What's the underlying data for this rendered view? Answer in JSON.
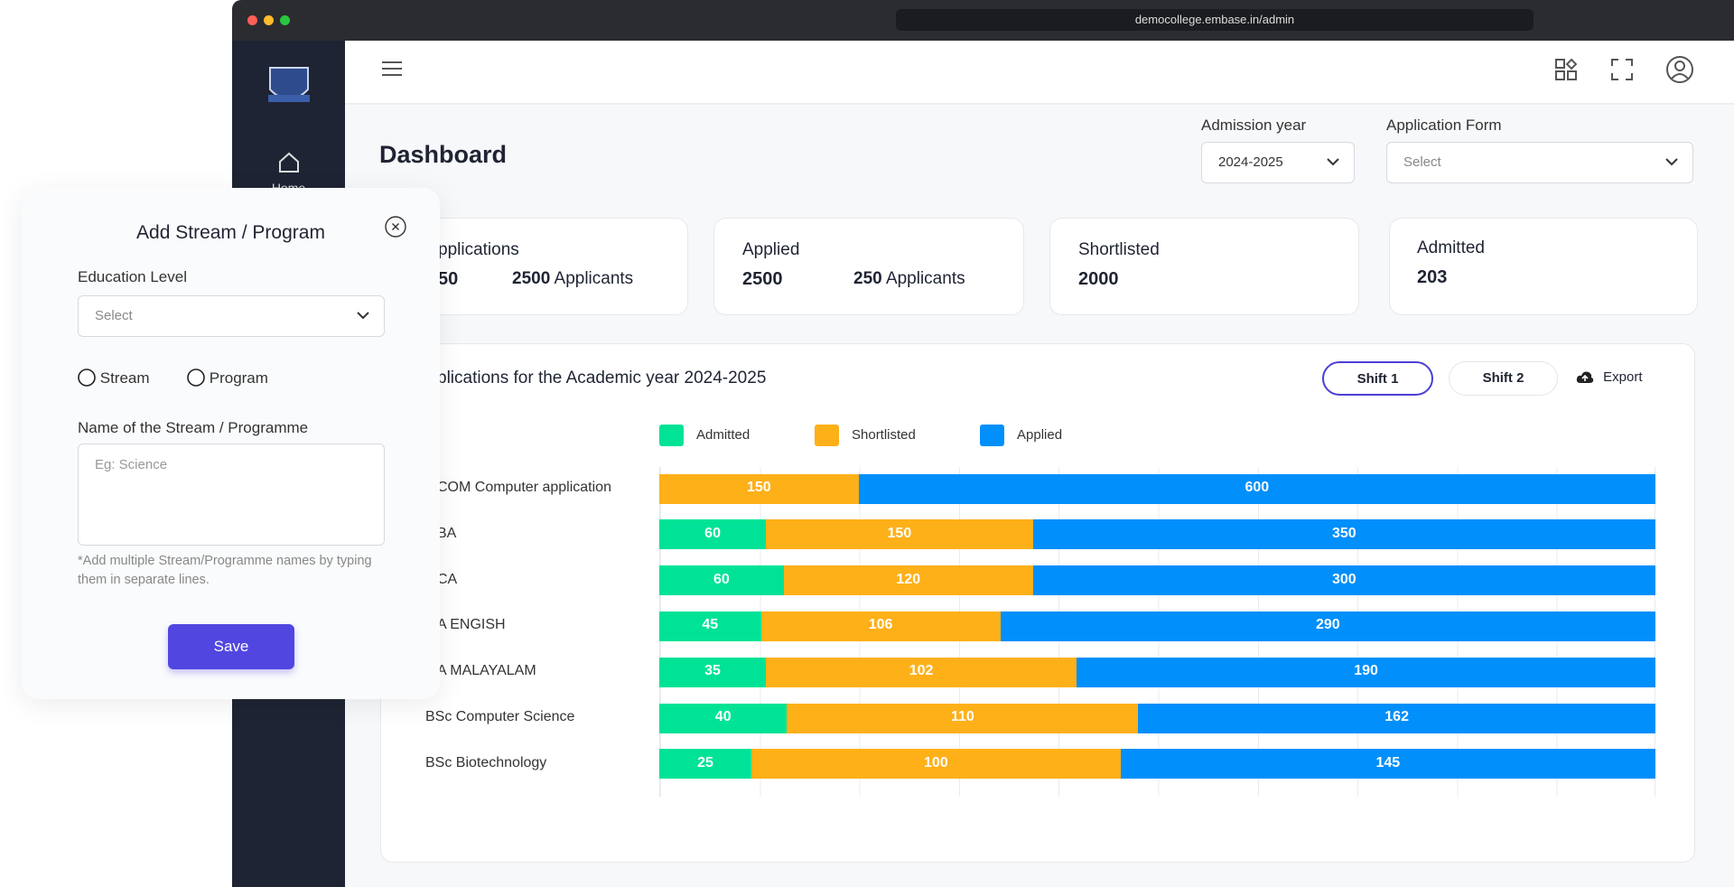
{
  "browser": {
    "url": "democollege.embase.in/admin"
  },
  "sidebar": {
    "home": "Home"
  },
  "dashboard": {
    "title": "Dashboard",
    "filters": [
      {
        "label": "Admission year",
        "value": "2024-2025"
      },
      {
        "label": "Application Form",
        "value": "Select"
      }
    ],
    "cards": [
      {
        "title": "pplications",
        "value": "50",
        "extra_value": "2500",
        "extra_text": "Applicants"
      },
      {
        "title": "Applied",
        "value": "2500",
        "extra_value": "250",
        "extra_text": "Applicants"
      },
      {
        "title": "Shortlisted",
        "value": "2000"
      },
      {
        "title": "Admitted",
        "value": "203"
      }
    ],
    "shift_buttons": [
      "Shift 1",
      "Shift 2"
    ],
    "export": "Export"
  },
  "chart_data": {
    "type": "bar",
    "orientation": "horizontal",
    "stacking": "percent",
    "title": "plications for the Academic year 2024-2025",
    "categories": [
      "COM Computer application",
      "BA",
      "CA",
      "A ENGISH",
      "A MALAYALAM",
      "BSc Computer Science",
      "BSc Biotechnology"
    ],
    "series": [
      {
        "name": "Admitted",
        "color": "#00e396",
        "values": [
          0,
          60,
          60,
          45,
          35,
          40,
          25
        ]
      },
      {
        "name": "Shortlisted",
        "color": "#feb019",
        "values": [
          150,
          150,
          120,
          106,
          102,
          110,
          100
        ]
      },
      {
        "name": "Applied",
        "color": "#008ffb",
        "values": [
          600,
          350,
          300,
          290,
          190,
          162,
          145
        ]
      }
    ]
  },
  "modal": {
    "title": "Add Stream / Program",
    "education_label": "Education Level",
    "education_placeholder": "Select",
    "options": [
      "Stream",
      "Program"
    ],
    "name_label": "Name of the Stream / Programme",
    "name_placeholder": "Eg: Science",
    "hint": "*Add multiple Stream/Programme names by typing them in separate lines.",
    "save": "Save"
  }
}
